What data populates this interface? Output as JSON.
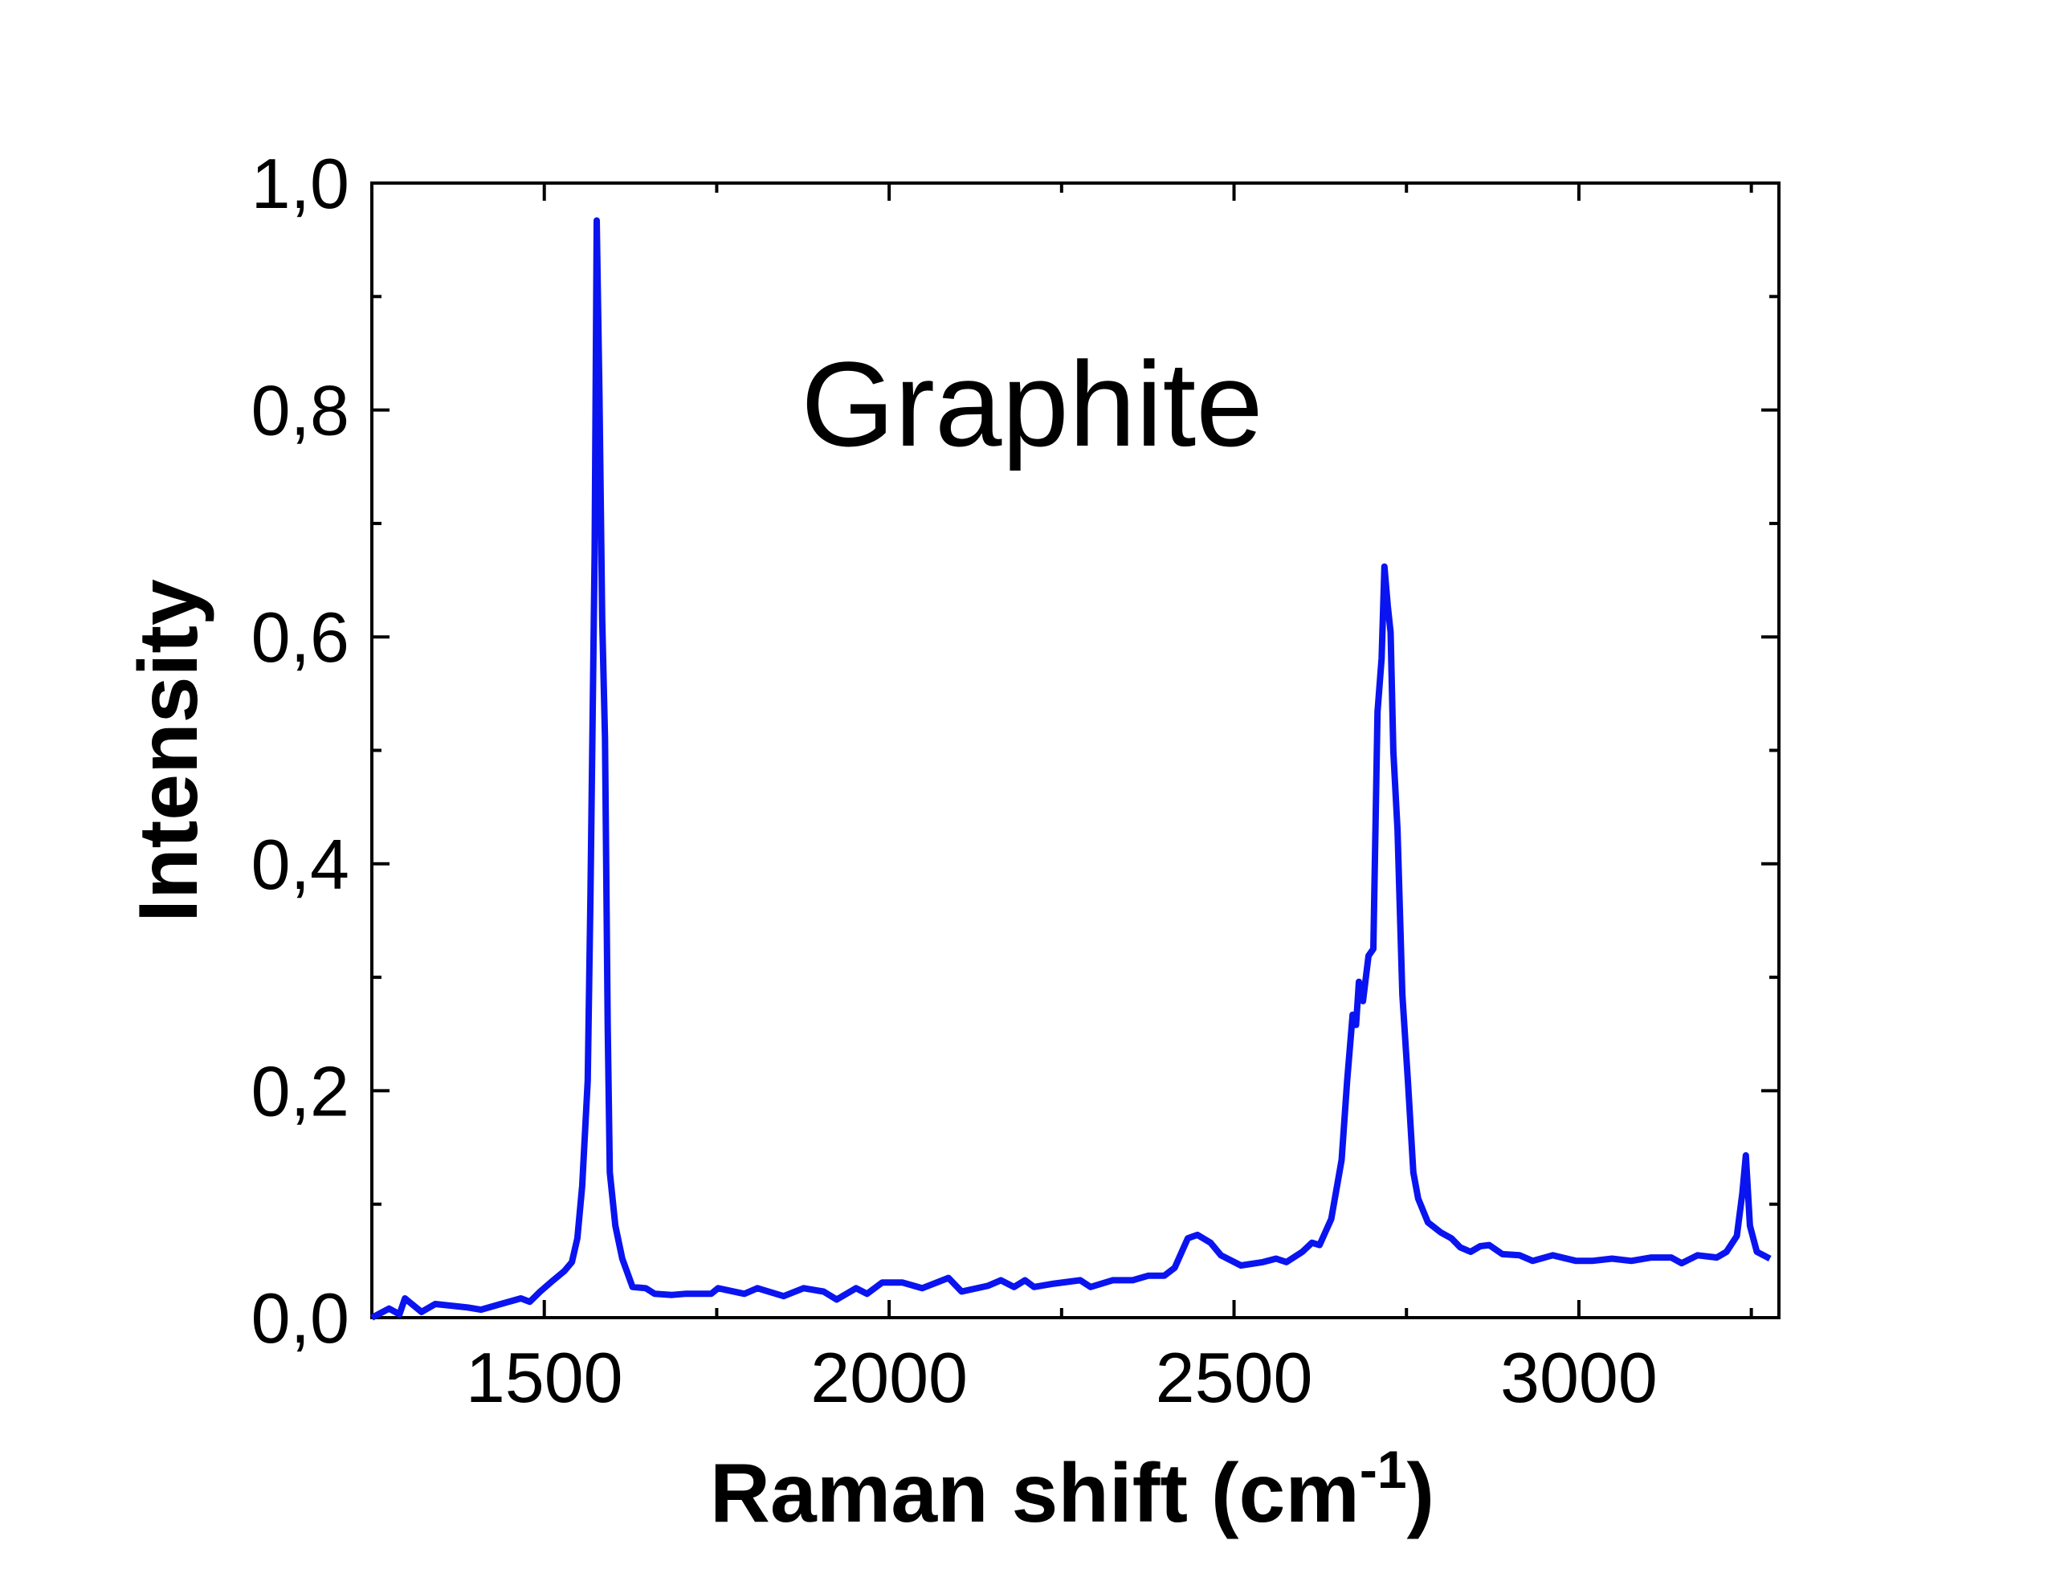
{
  "chart_data": {
    "type": "line",
    "annotation": "Graphite",
    "xlabel": {
      "text": "Raman shift (cm",
      "superscript": "-1",
      "suffix": ")"
    },
    "ylabel": "Intensity",
    "xlim": [
      1250,
      3290
    ],
    "ylim": [
      0,
      1.0
    ],
    "xticks": [
      1500,
      2000,
      2500,
      3000
    ],
    "xminorticks": [
      1750,
      2250,
      2750,
      3250
    ],
    "yticks": [
      {
        "value": 0,
        "label": "0,0"
      },
      {
        "value": 0.2,
        "label": "0,2"
      },
      {
        "value": 0.4,
        "label": "0,4"
      },
      {
        "value": 0.6,
        "label": "0,6"
      },
      {
        "value": 0.8,
        "label": "0,8"
      },
      {
        "value": 1.0,
        "label": "1,0"
      }
    ],
    "yminorticks": [
      0.1,
      0.3,
      0.5,
      0.7,
      0.9
    ],
    "series": [
      {
        "name": "Graphite",
        "color": "#0a14f0",
        "x": [
          1250,
          1275,
          1290,
          1298,
          1322,
          1342,
          1389,
          1408,
          1437,
          1466,
          1479,
          1494,
          1513,
          1529,
          1540,
          1548,
          1555,
          1563,
          1567,
          1573,
          1576,
          1580,
          1584,
          1588,
          1592,
          1595,
          1603,
          1613,
          1628,
          1647,
          1660,
          1685,
          1704,
          1742,
          1752,
          1790,
          1809,
          1847,
          1876,
          1905,
          1924,
          1952,
          1968,
          1990,
          2019,
          2048,
          2086,
          2105,
          2143,
          2162,
          2181,
          2197,
          2210,
          2239,
          2277,
          2292,
          2324,
          2353,
          2376,
          2399,
          2414,
          2433,
          2447,
          2466,
          2481,
          2510,
          2542,
          2561,
          2576,
          2599,
          2613,
          2624,
          2641,
          2656,
          2664,
          2672,
          2677,
          2681,
          2687,
          2695,
          2702,
          2708,
          2714,
          2718,
          2723,
          2727,
          2731,
          2737,
          2744,
          2752,
          2760,
          2767,
          2781,
          2800,
          2815,
          2828,
          2843,
          2857,
          2870,
          2889,
          2914,
          2933,
          2962,
          2996,
          3019,
          3048,
          3076,
          3105,
          3134,
          3149,
          3172,
          3200,
          3214,
          3229,
          3237,
          3242,
          3248,
          3258,
          3277
        ],
        "values": [
          0,
          0.008,
          0.003,
          0.017,
          0.005,
          0.012,
          0.009,
          0.007,
          0.012,
          0.017,
          0.014,
          0.023,
          0.033,
          0.041,
          0.049,
          0.07,
          0.116,
          0.209,
          0.372,
          0.674,
          0.967,
          0.813,
          0.616,
          0.511,
          0.256,
          0.128,
          0.081,
          0.052,
          0.027,
          0.026,
          0.021,
          0.02,
          0.021,
          0.021,
          0.026,
          0.021,
          0.026,
          0.019,
          0.026,
          0.023,
          0.016,
          0.026,
          0.021,
          0.031,
          0.031,
          0.026,
          0.035,
          0.023,
          0.028,
          0.033,
          0.027,
          0.033,
          0.027,
          0.03,
          0.033,
          0.027,
          0.033,
          0.033,
          0.037,
          0.037,
          0.044,
          0.07,
          0.073,
          0.066,
          0.055,
          0.046,
          0.049,
          0.052,
          0.049,
          0.058,
          0.066,
          0.064,
          0.087,
          0.139,
          0.209,
          0.267,
          0.258,
          0.296,
          0.279,
          0.319,
          0.325,
          0.534,
          0.581,
          0.662,
          0.627,
          0.604,
          0.499,
          0.43,
          0.285,
          0.209,
          0.128,
          0.105,
          0.084,
          0.075,
          0.07,
          0.062,
          0.058,
          0.063,
          0.064,
          0.056,
          0.055,
          0.05,
          0.055,
          0.05,
          0.05,
          0.052,
          0.05,
          0.053,
          0.053,
          0.048,
          0.055,
          0.053,
          0.058,
          0.072,
          0.11,
          0.143,
          0.081,
          0.058,
          0.052
        ]
      }
    ]
  }
}
